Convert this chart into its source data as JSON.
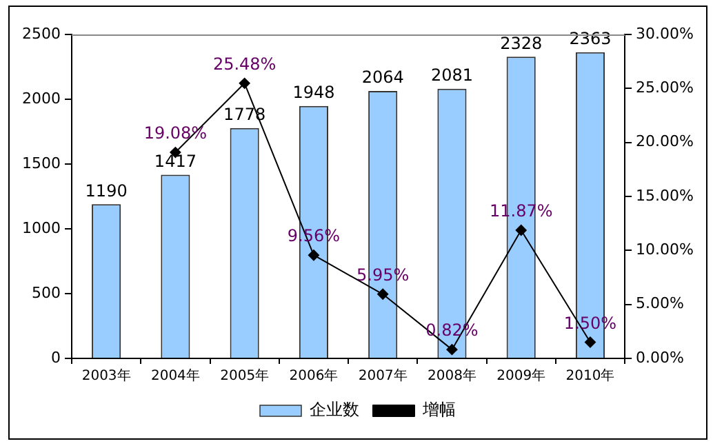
{
  "chart_data": {
    "type": "bar",
    "categories": [
      "2003年",
      "2004年",
      "2005年",
      "2006年",
      "2007年",
      "2008年",
      "2009年",
      "2010年"
    ],
    "series": [
      {
        "name": "企业数",
        "color": "#99ccff",
        "values": [
          1190,
          1417,
          1778,
          1948,
          2064,
          2081,
          2328,
          2363
        ],
        "value_labels": [
          "1190",
          "1417",
          "1778",
          "1948",
          "2064",
          "2081",
          "2328",
          "2363"
        ]
      },
      {
        "name": "增幅",
        "type": "line",
        "axis": "y2",
        "color": "#000000",
        "marker": "diamond",
        "values": [
          null,
          19.08,
          25.48,
          9.56,
          5.95,
          0.82,
          11.87,
          1.5
        ],
        "value_labels": [
          null,
          "19.08%",
          "25.48%",
          "9.56%",
          "5.95%",
          "0.82%",
          "11.87%",
          "1.50%"
        ]
      }
    ],
    "ylim": [
      0,
      2500
    ],
    "yticks": [
      0,
      500,
      1000,
      1500,
      2000,
      2500
    ],
    "y2lim": [
      0,
      30
    ],
    "y2ticks": [
      {
        "value": 0,
        "label": "0.00%"
      },
      {
        "value": 5,
        "label": "5.00%"
      },
      {
        "value": 10,
        "label": "10.00%"
      },
      {
        "value": 15,
        "label": "15.00%"
      },
      {
        "value": 20,
        "label": "20.00%"
      },
      {
        "value": 25,
        "label": "25.00%"
      },
      {
        "value": 30,
        "label": "30.00%"
      }
    ],
    "grid": false,
    "legend": "bottom"
  }
}
